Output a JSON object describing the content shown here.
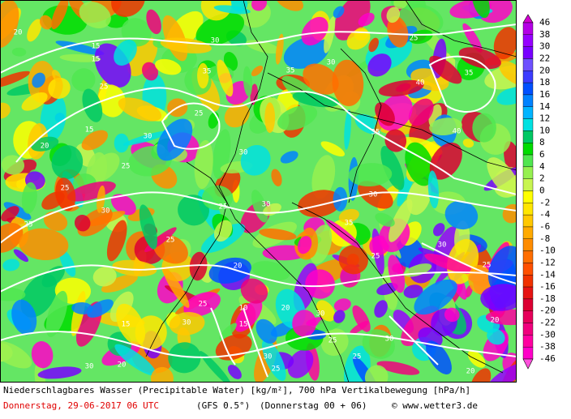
{
  "colorbar": {
    "labels": [
      46,
      38,
      30,
      22,
      20,
      18,
      16,
      14,
      12,
      10,
      8,
      6,
      4,
      2,
      0,
      -2,
      -4,
      -6,
      -8,
      -10,
      -12,
      -14,
      -16,
      -18,
      -20,
      -22,
      -30,
      -38,
      -46
    ],
    "colors": [
      "#d200d2",
      "#b400e6",
      "#9600ff",
      "#7800ff",
      "#6e50ff",
      "#3c3cff",
      "#0050ff",
      "#0082ff",
      "#00b4ff",
      "#00e1e1",
      "#00c864",
      "#00dc00",
      "#50e650",
      "#96f050",
      "#c8f550",
      "#ffff00",
      "#ffe600",
      "#ffc800",
      "#ffaa00",
      "#ff8c00",
      "#ff6e00",
      "#ff5000",
      "#f03200",
      "#e61414",
      "#dc0032",
      "#e6005a",
      "#f0007d",
      "#ff00a0",
      "#ff00c8",
      "#ff50dc"
    ]
  },
  "map": {
    "contour_labels": [
      20,
      15,
      25,
      15,
      30,
      35,
      25,
      30,
      15,
      25,
      30,
      25,
      20,
      25,
      30,
      40,
      35,
      40,
      35,
      25,
      30,
      35,
      25,
      30,
      35,
      25,
      20,
      30,
      25,
      30,
      25,
      20,
      15,
      10,
      30,
      20,
      25,
      30,
      25,
      20,
      30,
      25,
      30,
      20,
      15,
      25,
      30
    ]
  },
  "footer": {
    "line1": "Niederschlagbares Wasser (Precipitable Water) [kg/m²], 700 hPa Vertikalbewegung [hPa/h]",
    "date": "Donnerstag, 29-06-2017  06 UTC",
    "model": "(GFS 0.5°)",
    "run": "(Donnerstag 00 + 06)",
    "source": "© www.wetter3.de"
  }
}
